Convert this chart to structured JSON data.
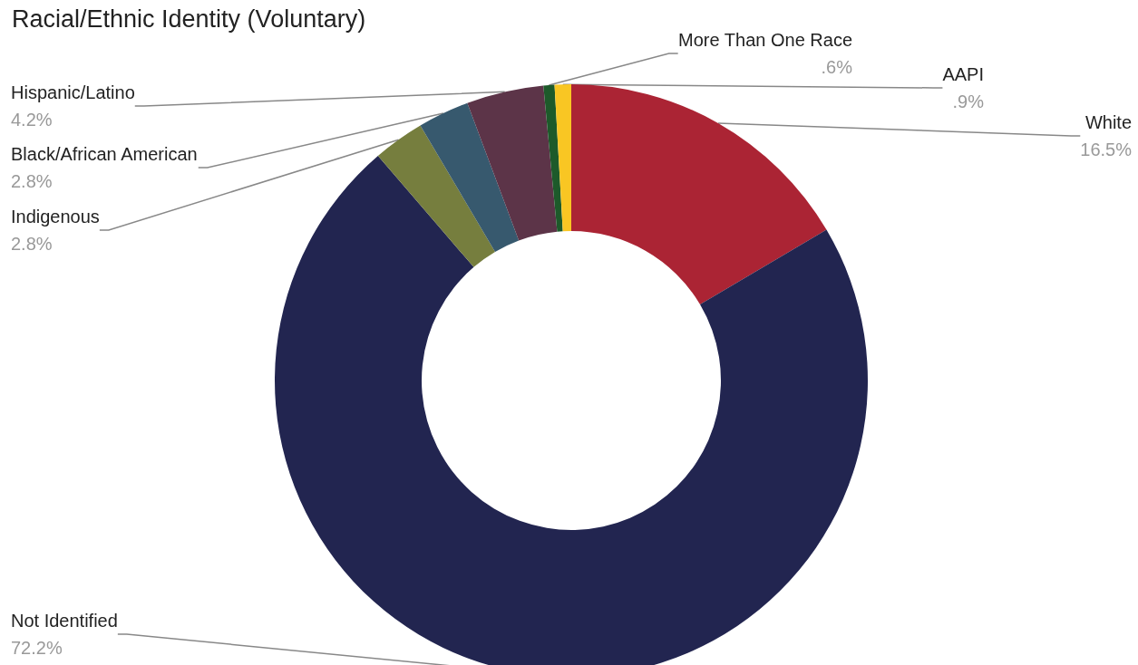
{
  "chart_data": {
    "type": "donut",
    "title": "Racial/Ethnic Identity (Voluntary)",
    "categories": [
      "White",
      "Not Identified",
      "Indigenous",
      "Black/African American",
      "Hispanic/Latino",
      "More Than One Race",
      "AAPI"
    ],
    "values": [
      16.5,
      72.2,
      2.8,
      2.8,
      4.2,
      0.6,
      0.9
    ],
    "colors": [
      "#ab2434",
      "#222550",
      "#767e3e",
      "#37596e",
      "#5c3448",
      "#1d5a2a",
      "#f9c623"
    ],
    "value_labels": [
      "16.5%",
      "72.2%",
      "2.8%",
      "2.8%",
      "4.2%",
      ".6%",
      ".9%"
    ],
    "legend": false
  }
}
